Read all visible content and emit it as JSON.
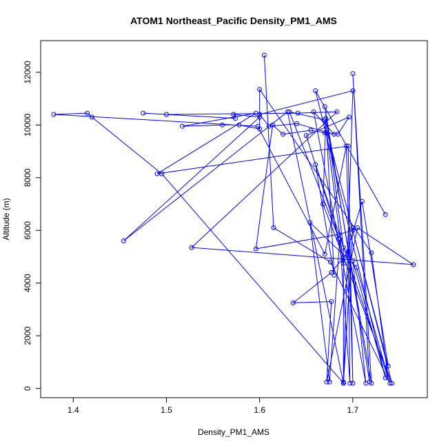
{
  "chart_data": {
    "type": "line",
    "title": "ATOM1 Northeast_Pacific Density_PM1_AMS",
    "xlabel": "Density_PM1_AMS",
    "ylabel": "Altitude (m)",
    "xlim": [
      1.365,
      1.78
    ],
    "ylim": [
      -350,
      13200
    ],
    "xticks": [
      1.4,
      1.5,
      1.6,
      1.7
    ],
    "xtick_labels": [
      "1.4",
      "1.5",
      "1.6",
      "1.7"
    ],
    "yticks": [
      0,
      2000,
      4000,
      6000,
      8000,
      10000,
      12000
    ],
    "ytick_labels": [
      "0",
      "2000",
      "4000",
      "6000",
      "8000",
      "10000",
      "12000"
    ],
    "grid": false,
    "marker": "open-circle",
    "color": "#0000ff",
    "series": [
      {
        "x": [
          1.735,
          1.66,
          1.735,
          1.7,
          1.714,
          1.658,
          1.68,
          1.64,
          1.61,
          1.6,
          1.7,
          1.69,
          1.7,
          1.69,
          1.69,
          1.67,
          1.718,
          1.7,
          1.72,
          1.671,
          1.668,
          1.742,
          1.7,
          1.685,
          1.596,
          1.614,
          1.625,
          1.655,
          1.67,
          1.684,
          1.696,
          1.65,
          1.685,
          1.632,
          1.669,
          1.738,
          1.71,
          1.69,
          1.672,
          1.68,
          1.66,
          1.738,
          1.72,
          1.6,
          1.6,
          1.578,
          1.56,
          1.517,
          1.596,
          1.49,
          1.695,
          1.7,
          1.693,
          1.67,
          1.598,
          1.379,
          1.415,
          1.42,
          1.495,
          1.69,
          1.63,
          1.454,
          1.6,
          1.572,
          1.574,
          1.475,
          1.5,
          1.641,
          1.683,
          1.527,
          1.765,
          1.705,
          1.672,
          1.677,
          1.636,
          1.677,
          1.695,
          1.697,
          1.686,
          1.675,
          1.654,
          1.704,
          1.74,
          1.676,
          1.615,
          1.605
        ],
        "y": [
          6600,
          11300,
          400,
          4850,
          200,
          10500,
          9650,
          10050,
          9950,
          10400,
          11300,
          250,
          6100,
          200,
          5350,
          10700,
          250,
          11950,
          200,
          10250,
          7000,
          200,
          6000,
          5850,
          5300,
          10000,
          9650,
          9800,
          9700,
          9650,
          10300,
          9600,
          5700,
          10500,
          10200,
          850,
          7100,
          4750,
          9700,
          4300,
          8500,
          400,
          5150,
          11350,
          9850,
          10000,
          10000,
          9950,
          10450,
          8150,
          9200,
          200,
          9200,
          5100,
          9950,
          10400,
          10450,
          10300,
          8150,
          200,
          10500,
          5600,
          10300,
          10400,
          10250,
          10450,
          10400,
          10450,
          10500,
          5350,
          4700,
          6100,
          250,
          3300,
          3250,
          4400,
          5200,
          200,
          5650,
          250,
          6300,
          4600,
          200,
          4800,
          6100,
          12650
        ]
      }
    ]
  }
}
